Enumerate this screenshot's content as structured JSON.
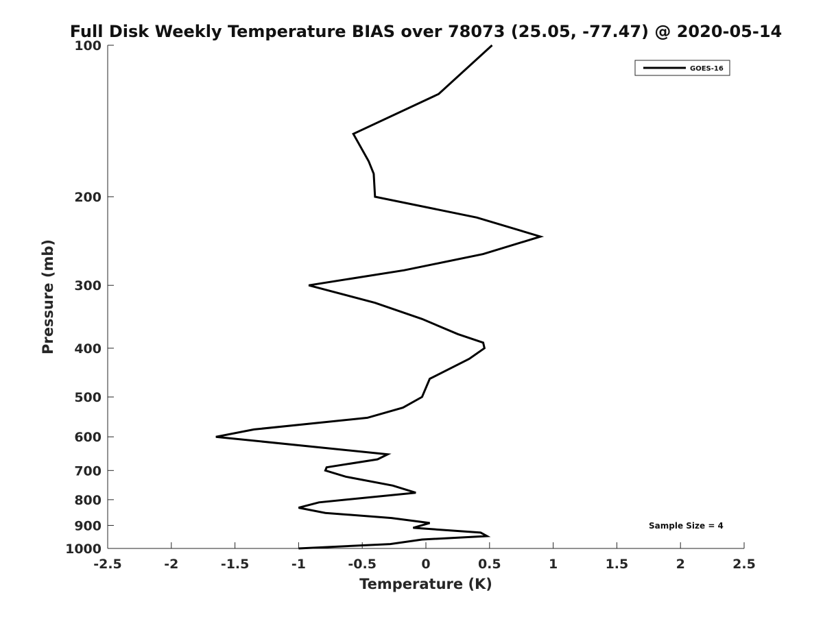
{
  "chart_data": {
    "type": "line",
    "title": "Full Disk Weekly Temperature BIAS over 78073 (25.05, -77.47) @ 2020-05-14",
    "xlabel": "Temperature (K)",
    "ylabel": "Pressure (mb)",
    "xlim": [
      -2.5,
      2.5
    ],
    "ylim": [
      100,
      1000
    ],
    "y_scale": "log",
    "y_reversed": true,
    "grid": false,
    "legend_placement": "top-right",
    "x_ticks": [
      "-2.5",
      "-2",
      "-1.5",
      "-1",
      "-0.5",
      "0",
      "0.5",
      "1",
      "1.5",
      "2",
      "2.5"
    ],
    "y_ticks": [
      "100",
      "200",
      "300",
      "400",
      "500",
      "600",
      "700",
      "800",
      "900",
      "1000"
    ],
    "series": [
      {
        "name": "GOES-16",
        "color": "#000000",
        "points": [
          {
            "x": 0.52,
            "y": 100
          },
          {
            "x": 0.1,
            "y": 125
          },
          {
            "x": -0.57,
            "y": 150
          },
          {
            "x": -0.45,
            "y": 170
          },
          {
            "x": -0.41,
            "y": 180
          },
          {
            "x": -0.4,
            "y": 200
          },
          {
            "x": 0.4,
            "y": 220
          },
          {
            "x": 0.9,
            "y": 240
          },
          {
            "x": 0.45,
            "y": 260
          },
          {
            "x": -0.17,
            "y": 280
          },
          {
            "x": -0.92,
            "y": 300
          },
          {
            "x": -0.4,
            "y": 325
          },
          {
            "x": -0.03,
            "y": 350
          },
          {
            "x": 0.25,
            "y": 375
          },
          {
            "x": 0.45,
            "y": 390
          },
          {
            "x": 0.46,
            "y": 400
          },
          {
            "x": 0.34,
            "y": 420
          },
          {
            "x": 0.03,
            "y": 460
          },
          {
            "x": -0.03,
            "y": 500
          },
          {
            "x": -0.18,
            "y": 525
          },
          {
            "x": -0.46,
            "y": 550
          },
          {
            "x": -1.35,
            "y": 580
          },
          {
            "x": -1.65,
            "y": 600
          },
          {
            "x": -0.3,
            "y": 650
          },
          {
            "x": -0.38,
            "y": 665
          },
          {
            "x": -0.78,
            "y": 690
          },
          {
            "x": -0.79,
            "y": 700
          },
          {
            "x": -0.63,
            "y": 720
          },
          {
            "x": -0.26,
            "y": 750
          },
          {
            "x": -0.08,
            "y": 775
          },
          {
            "x": -0.84,
            "y": 810
          },
          {
            "x": -1.0,
            "y": 830
          },
          {
            "x": -0.79,
            "y": 850
          },
          {
            "x": -0.27,
            "y": 870
          },
          {
            "x": 0.03,
            "y": 890
          },
          {
            "x": -0.1,
            "y": 910
          },
          {
            "x": 0.43,
            "y": 930
          },
          {
            "x": 0.48,
            "y": 945
          },
          {
            "x": -0.03,
            "y": 960
          },
          {
            "x": -0.28,
            "y": 980
          },
          {
            "x": -1.0,
            "y": 1000
          }
        ]
      }
    ],
    "annotations": [
      {
        "text": "Sample Size = 4"
      }
    ]
  }
}
